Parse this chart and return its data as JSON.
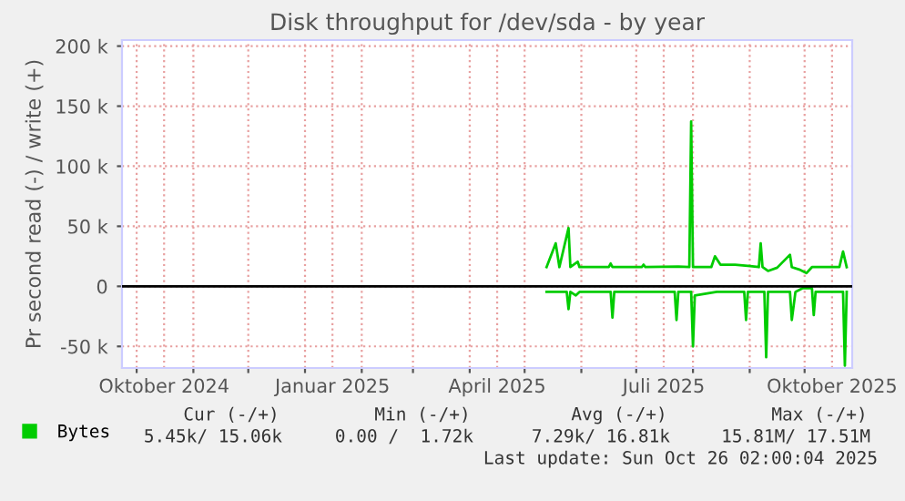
{
  "chart_data": {
    "type": "line",
    "title": "Disk throughput for /dev/sda - by year",
    "ylabel": "Pr second read (-) / write (+)",
    "xlim": [
      "2024-09-23",
      "2025-10-27"
    ],
    "xticks": [
      {
        "value": "2024-10-01",
        "label": null
      },
      {
        "value": "2024-10-16",
        "label": "Oktober 2024"
      },
      {
        "value": "2024-11-01",
        "label": null
      },
      {
        "value": "2024-12-01",
        "label": null
      },
      {
        "value": "2025-01-01",
        "label": null
      },
      {
        "value": "2025-01-16",
        "label": "Januar 2025"
      },
      {
        "value": "2025-02-01",
        "label": null
      },
      {
        "value": "2025-03-01",
        "label": null
      },
      {
        "value": "2025-04-01",
        "label": null
      },
      {
        "value": "2025-04-16",
        "label": "April 2025"
      },
      {
        "value": "2025-05-01",
        "label": null
      },
      {
        "value": "2025-06-01",
        "label": null
      },
      {
        "value": "2025-07-01",
        "label": null
      },
      {
        "value": "2025-07-16",
        "label": "Juli 2025"
      },
      {
        "value": "2025-08-01",
        "label": null
      },
      {
        "value": "2025-09-01",
        "label": null
      },
      {
        "value": "2025-10-01",
        "label": null
      },
      {
        "value": "2025-10-16",
        "label": "Oktober 2025"
      }
    ],
    "ylim": [
      -68000,
      205000
    ],
    "yticks": [
      {
        "value": -50000,
        "label": "-50 k"
      },
      0,
      {
        "value": 50000,
        "label": "50 k"
      },
      {
        "value": 100000,
        "label": "100 k"
      },
      {
        "value": 150000,
        "label": "150 k"
      },
      {
        "value": 200000,
        "label": "200 k"
      }
    ],
    "grid": true,
    "legend": "bottom left",
    "marker": "none",
    "line_style": "solid",
    "ref_lines": [
      {
        "axis": "y",
        "value": 0,
        "color": "#000000"
      }
    ],
    "series": [
      {
        "name": "Bytes",
        "color": "#00cc00",
        "x": [
          "2025-05-13",
          "2025-05-18",
          "2025-05-20",
          "2025-05-25",
          "2025-05-26",
          "2025-05-30",
          "2025-05-31",
          "2025-06-16",
          "2025-06-17",
          "2025-06-18",
          "2025-07-04",
          "2025-07-05",
          "2025-07-06",
          "2025-07-24",
          "2025-07-30",
          "2025-07-31",
          "2025-08-01",
          "2025-08-11",
          "2025-08-13",
          "2025-08-16",
          "2025-08-24",
          "2025-08-31",
          "2025-09-06",
          "2025-09-07",
          "2025-09-08",
          "2025-09-11",
          "2025-09-16",
          "2025-09-23",
          "2025-09-24",
          "2025-09-28",
          "2025-10-02",
          "2025-10-05",
          "2025-10-20",
          "2025-10-22",
          "2025-10-24"
        ],
        "values": [
          16000,
          35800,
          16000,
          48600,
          16000,
          20500,
          16000,
          16000,
          19000,
          16000,
          16000,
          18000,
          16000,
          16500,
          16000,
          137300,
          16000,
          16000,
          25000,
          18000,
          18000,
          17000,
          16000,
          35800,
          16000,
          12800,
          15500,
          26300,
          16000,
          14000,
          11000,
          16000,
          16000,
          29000,
          16000
        ]
      },
      {
        "color": "#00cc00",
        "x": [
          "2025-05-13",
          "2025-05-24",
          "2025-05-25",
          "2025-05-26",
          "2025-05-29",
          "2025-05-31",
          "2025-06-17",
          "2025-06-18",
          "2025-06-19",
          "2025-07-22",
          "2025-07-23",
          "2025-07-24",
          "2025-07-31",
          "2025-08-01",
          "2025-08-02",
          "2025-08-14",
          "2025-08-29",
          "2025-08-30",
          "2025-08-31",
          "2025-09-09",
          "2025-09-10",
          "2025-09-11",
          "2025-09-23",
          "2025-09-24",
          "2025-09-26",
          "2025-09-30",
          "2025-10-05",
          "2025-10-06",
          "2025-10-07",
          "2025-10-22",
          "2025-10-23",
          "2025-10-24"
        ],
        "values": [
          -4600,
          -4600,
          -19000,
          -4600,
          -7600,
          -4600,
          -4600,
          -26000,
          -4600,
          -4600,
          -28000,
          -4600,
          -4600,
          -50000,
          -7600,
          -4600,
          -4600,
          -28000,
          -4600,
          -4600,
          -59000,
          -4600,
          -4600,
          -28000,
          -4600,
          -1500,
          -1500,
          -24000,
          -4600,
          -4600,
          -66000,
          -4600
        ]
      }
    ],
    "annotations": [
      "Cur (-/+)",
      "Min (-/+)",
      "Avg (-/+)",
      "Max (-/+)",
      "5.45k/ 15.06k",
      "0.00 /  1.72k",
      "7.29k/ 16.81k",
      "15.81M/ 17.51M",
      "Last update: Sun Oct 26 02:00:04 2025"
    ]
  }
}
